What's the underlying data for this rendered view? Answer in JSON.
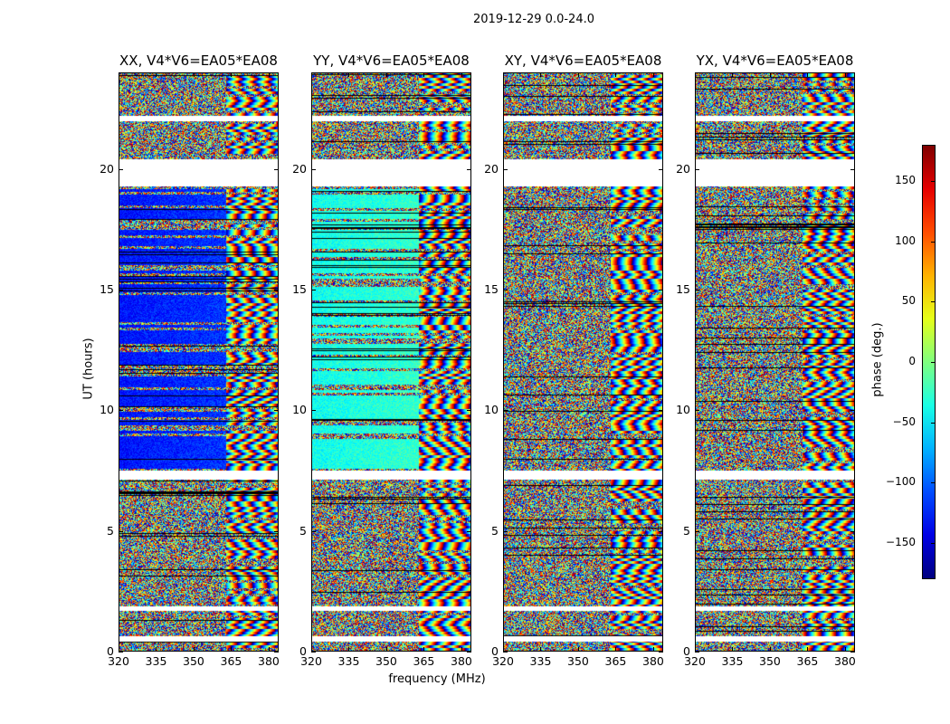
{
  "chart_data": {
    "type": "heatmap",
    "title": "2019-12-29 0.0-24.0",
    "xlabel": "frequency (MHz)",
    "ylabel": "UT (hours)",
    "xlim": [
      320,
      384
    ],
    "ylim": [
      0,
      24
    ],
    "xticks": [
      "320",
      "335",
      "350",
      "365",
      "380"
    ],
    "xtick_values": [
      320,
      335,
      350,
      365,
      380
    ],
    "yticks": [
      "0",
      "5",
      "10",
      "15",
      "20"
    ],
    "ytick_values": [
      0,
      5,
      10,
      15,
      20
    ],
    "panels": [
      {
        "title": "XX, V4*V6=EA05*EA08",
        "character": "mostly blue (~-130 deg) smooth below 363 MHz from 8-19 UT, noisy elsewhere, fringes above 363 MHz"
      },
      {
        "title": "YY, V4*V6=EA05*EA08",
        "character": "cyan/green (~-40 deg) smooth below 363 MHz from 8-19 UT, noisy elsewhere"
      },
      {
        "title": "XY, V4*V6=EA05*EA08",
        "character": "noisy"
      },
      {
        "title": "YX, V4*V6=EA05*EA08",
        "character": "noisy"
      }
    ],
    "flagged_gaps_hours": [
      [
        0.45,
        0.65
      ],
      [
        1.7,
        1.9
      ],
      [
        7.15,
        7.5
      ],
      [
        19.3,
        20.4
      ],
      [
        22.0,
        22.2
      ]
    ],
    "colorbar": {
      "label": "phase (deg.)",
      "colormap": "jet",
      "range": [
        -180,
        180
      ],
      "ticks": [
        "150",
        "100",
        "50",
        "0",
        "−50",
        "−100",
        "−150"
      ],
      "tick_values": [
        150,
        100,
        50,
        0,
        -50,
        -100,
        -150
      ]
    }
  }
}
